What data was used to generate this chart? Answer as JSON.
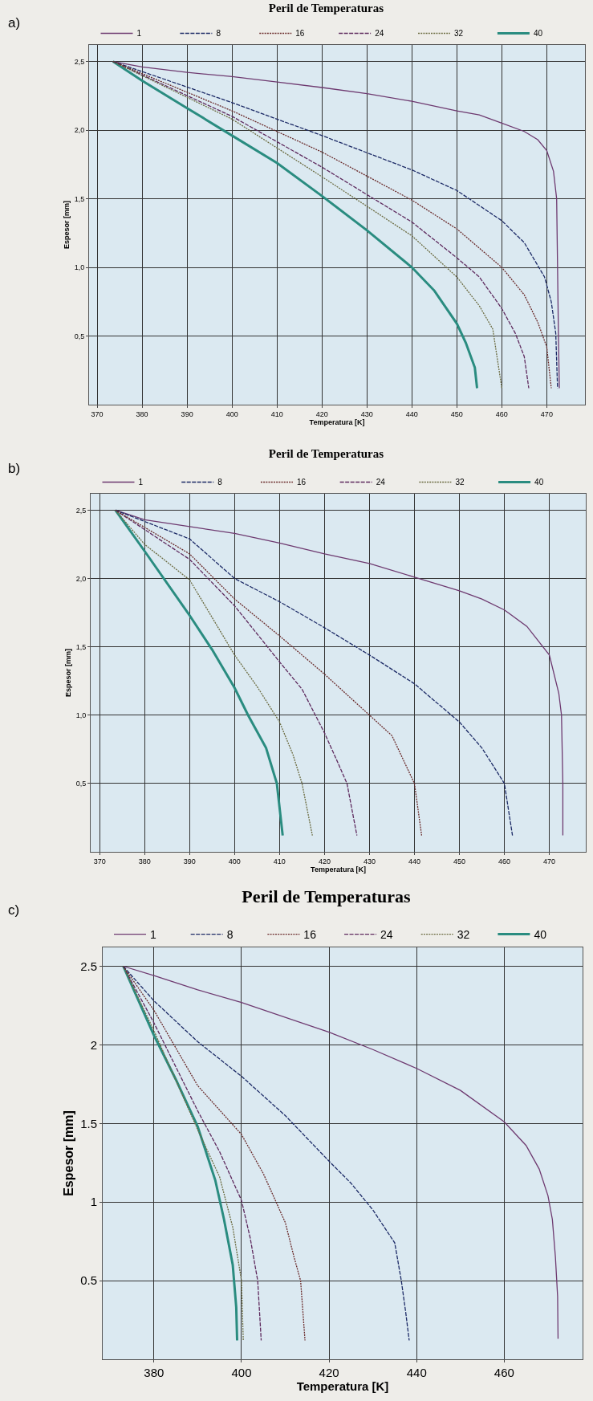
{
  "chart_data": [
    {
      "type": "line",
      "title": "Peril de Temperaturas",
      "xlabel": "Temperatura [K]",
      "ylabel": "Espesor [mm]",
      "annotations": [
        "a)"
      ],
      "grid": true,
      "legend": "top",
      "xlim": [
        368.2,
        478.5
      ],
      "ylim": [
        0,
        2.62
      ],
      "xticks": [
        370,
        380,
        390,
        400,
        410,
        420,
        430,
        440,
        450,
        460,
        470
      ],
      "yticks": [
        {
          "value": 0.5,
          "label": "0,5"
        },
        {
          "value": 1.0,
          "label": "1,0"
        },
        {
          "value": 1.5,
          "label": "1,5"
        },
        {
          "value": 2.0,
          "label": "2,0"
        },
        {
          "value": 2.5,
          "label": "2,5"
        }
      ],
      "series": [
        {
          "name": "1",
          "color": "#6e3a70",
          "line_style": "solid",
          "x": [
            373.5,
            380,
            390,
            400,
            410,
            420,
            430,
            440,
            450,
            455,
            460,
            465,
            468,
            470,
            471.5,
            472.2,
            472.4,
            472.6,
            472.8
          ],
          "values": [
            2.5,
            2.46,
            2.42,
            2.39,
            2.35,
            2.31,
            2.265,
            2.21,
            2.14,
            2.11,
            2.05,
            1.99,
            1.93,
            1.85,
            1.7,
            1.5,
            1.0,
            0.5,
            0.12
          ]
        },
        {
          "name": "8",
          "color": "#1c2a66",
          "line_style": "dashed",
          "x": [
            373.5,
            400,
            420,
            440,
            450,
            460,
            465,
            469.5,
            471,
            472,
            472.4
          ],
          "values": [
            2.5,
            2.2,
            1.96,
            1.71,
            1.56,
            1.34,
            1.18,
            0.93,
            0.75,
            0.52,
            0.12
          ]
        },
        {
          "name": "16",
          "color": "#6a2a2a",
          "line_style": "dotted",
          "x": [
            373.5,
            400,
            420,
            440,
            450,
            460,
            465,
            468,
            470,
            471
          ],
          "values": [
            2.5,
            2.14,
            1.84,
            1.49,
            1.28,
            1.0,
            0.8,
            0.6,
            0.42,
            0.12
          ]
        },
        {
          "name": "24",
          "color": "#5e2a5e",
          "line_style": "dashed",
          "x": [
            373.5,
            400,
            420,
            440,
            450,
            455,
            460,
            463,
            465,
            466
          ],
          "values": [
            2.5,
            2.1,
            1.73,
            1.33,
            1.07,
            0.93,
            0.7,
            0.52,
            0.35,
            0.12
          ]
        },
        {
          "name": "32",
          "color": "#6b6b40",
          "line_style": "dotted",
          "x": [
            373.5,
            400,
            420,
            440,
            450,
            455,
            458,
            460
          ],
          "values": [
            2.5,
            2.08,
            1.66,
            1.23,
            0.93,
            0.72,
            0.55,
            0.12
          ]
        },
        {
          "name": "40",
          "color": "#2a8c80",
          "line_style": "solid",
          "x": [
            373.5,
            380,
            390,
            400,
            410,
            420,
            430,
            440,
            445,
            450,
            452,
            454,
            454.5
          ],
          "values": [
            2.5,
            2.36,
            2.16,
            1.96,
            1.76,
            1.52,
            1.27,
            1.0,
            0.83,
            0.59,
            0.45,
            0.27,
            0.12
          ]
        }
      ]
    },
    {
      "type": "line",
      "title": "Peril de Temperaturas",
      "xlabel": "Temperatura [K]",
      "ylabel": "Espesor [mm]",
      "annotations": [
        "b)"
      ],
      "grid": true,
      "legend": "top",
      "xlim": [
        368,
        478.1
      ],
      "ylim": [
        0,
        2.62
      ],
      "xticks": [
        370,
        380,
        390,
        400,
        410,
        420,
        430,
        440,
        450,
        460,
        470
      ],
      "yticks": [
        {
          "value": 0.5,
          "label": "0,5"
        },
        {
          "value": 1.0,
          "label": "1,0"
        },
        {
          "value": 1.5,
          "label": "1,5"
        },
        {
          "value": 2.0,
          "label": "2,0"
        },
        {
          "value": 2.5,
          "label": "2,5"
        }
      ],
      "series": [
        {
          "name": "1",
          "color": "#6e3a70",
          "line_style": "solid",
          "x": [
            373.5,
            380,
            390,
            400,
            410,
            420,
            430,
            440,
            450,
            455,
            460,
            465,
            470,
            472.1,
            472.7,
            473,
            473
          ],
          "values": [
            2.5,
            2.43,
            2.38,
            2.33,
            2.26,
            2.18,
            2.11,
            2.01,
            1.91,
            1.85,
            1.77,
            1.65,
            1.44,
            1.16,
            1.0,
            0.5,
            0.12
          ]
        },
        {
          "name": "8",
          "color": "#1c2a66",
          "line_style": "dashed",
          "x": [
            373.5,
            390,
            400,
            410,
            420,
            430,
            440,
            450,
            455,
            460,
            461.8
          ],
          "values": [
            2.5,
            2.29,
            2.0,
            1.83,
            1.64,
            1.44,
            1.23,
            0.95,
            0.76,
            0.5,
            0.12
          ]
        },
        {
          "name": "16",
          "color": "#6a2a2a",
          "line_style": "dotted",
          "x": [
            373.5,
            390,
            400,
            410,
            420,
            430,
            435,
            440,
            441.6
          ],
          "values": [
            2.5,
            2.18,
            1.85,
            1.58,
            1.3,
            1.0,
            0.85,
            0.5,
            0.12
          ]
        },
        {
          "name": "24",
          "color": "#5e2a5e",
          "line_style": "dashed",
          "x": [
            373.5,
            390,
            400,
            410,
            415,
            420,
            423,
            425,
            427.2
          ],
          "values": [
            2.5,
            2.14,
            1.8,
            1.39,
            1.19,
            0.87,
            0.65,
            0.5,
            0.12
          ]
        },
        {
          "name": "32",
          "color": "#6b6b40",
          "line_style": "dotted",
          "x": [
            373.5,
            380,
            390,
            400,
            405,
            410,
            413,
            415,
            417.3
          ],
          "values": [
            2.5,
            2.25,
            1.99,
            1.44,
            1.21,
            0.95,
            0.71,
            0.5,
            0.12
          ]
        },
        {
          "name": "40",
          "color": "#2a8c80",
          "line_style": "solid",
          "x": [
            373.5,
            380,
            390,
            395,
            400,
            403,
            407,
            409.4,
            410.7
          ],
          "values": [
            2.5,
            2.2,
            1.73,
            1.48,
            1.2,
            1.0,
            0.76,
            0.5,
            0.12
          ]
        }
      ]
    },
    {
      "type": "line",
      "title": "Peril de Temperaturas",
      "xlabel": "Temperatura [K]",
      "ylabel": "Espesor [mm]",
      "annotations": [
        "c)"
      ],
      "grid": true,
      "legend": "top",
      "xlim": [
        368.3,
        477.9
      ],
      "ylim": [
        0,
        2.62
      ],
      "xticks": [
        380,
        400,
        420,
        440,
        460
      ],
      "yticks": [
        0.5,
        1.0,
        1.5,
        2.0,
        2.5
      ],
      "series": [
        {
          "name": "1",
          "color": "#6e3a70",
          "line_style": "solid",
          "x": [
            373,
            380,
            390,
            400,
            420,
            430,
            440,
            450,
            460,
            465,
            468,
            470,
            471,
            471.7,
            472.2,
            472.3
          ],
          "values": [
            2.5,
            2.44,
            2.35,
            2.27,
            2.08,
            1.97,
            1.85,
            1.71,
            1.51,
            1.36,
            1.21,
            1.04,
            0.89,
            0.65,
            0.4,
            0.13
          ]
        },
        {
          "name": "8",
          "color": "#1c2a66",
          "line_style": "dashed",
          "x": [
            373,
            380,
            390,
            400,
            410,
            420,
            425,
            430,
            435,
            436.5,
            437.5,
            438.3
          ],
          "values": [
            2.5,
            2.28,
            2.02,
            1.8,
            1.55,
            1.26,
            1.12,
            0.95,
            0.74,
            0.5,
            0.3,
            0.12
          ]
        },
        {
          "name": "16",
          "color": "#6a2a2a",
          "line_style": "dotted",
          "x": [
            373,
            380,
            390,
            400,
            405,
            410,
            412,
            413.5,
            414.5
          ],
          "values": [
            2.5,
            2.22,
            1.74,
            1.43,
            1.18,
            0.87,
            0.65,
            0.5,
            0.12
          ]
        },
        {
          "name": "24",
          "color": "#5e2a5e",
          "line_style": "dashed",
          "x": [
            373,
            380,
            390,
            395,
            400,
            402,
            403.7,
            404.5
          ],
          "values": [
            2.5,
            2.14,
            1.58,
            1.32,
            1.01,
            0.77,
            0.5,
            0.12
          ]
        },
        {
          "name": "32",
          "color": "#6b6b40",
          "line_style": "dotted",
          "x": [
            373,
            380,
            390,
            395,
            398,
            400,
            400.4
          ],
          "values": [
            2.5,
            2.09,
            1.46,
            1.16,
            0.84,
            0.5,
            0.12
          ]
        },
        {
          "name": "40",
          "color": "#2a8c80",
          "line_style": "solid",
          "x": [
            373,
            380,
            385,
            390,
            394,
            396,
            398,
            398.8,
            399
          ],
          "values": [
            2.5,
            2.06,
            1.78,
            1.48,
            1.14,
            0.89,
            0.6,
            0.33,
            0.12
          ]
        }
      ]
    }
  ]
}
